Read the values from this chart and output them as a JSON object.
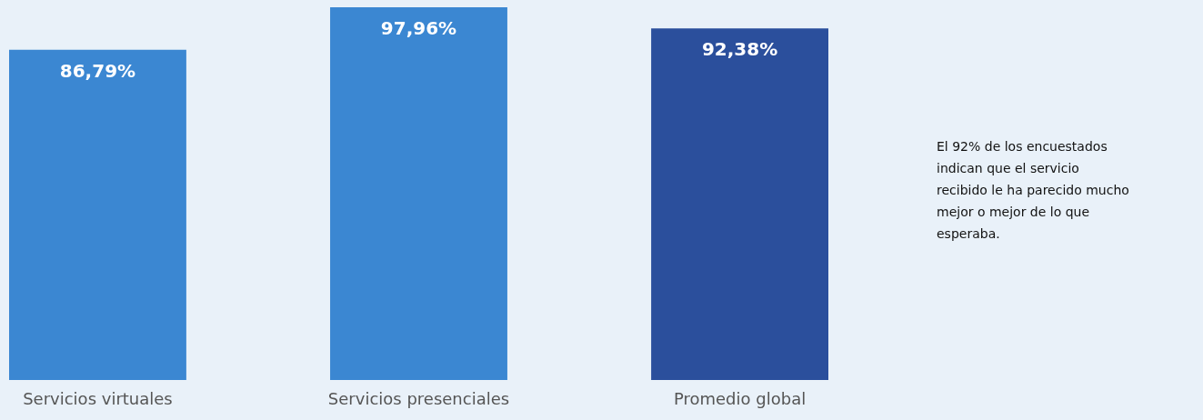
{
  "chart_data": {
    "type": "bar",
    "categories": [
      "Servicios virtuales",
      "Servicios presenciales",
      "Promedio global"
    ],
    "values": [
      86.79,
      97.96,
      92.38
    ],
    "colors": [
      "#3b87d2",
      "#3b87d2",
      "#2b4f9c"
    ],
    "value_labels": [
      "86,79%",
      "97,96%",
      "92,38%"
    ],
    "annotations": [
      "El 92% de los encuestados indican que el servicio recibido le ha parecido mucho mejor o mejor de lo que esperaba."
    ]
  }
}
